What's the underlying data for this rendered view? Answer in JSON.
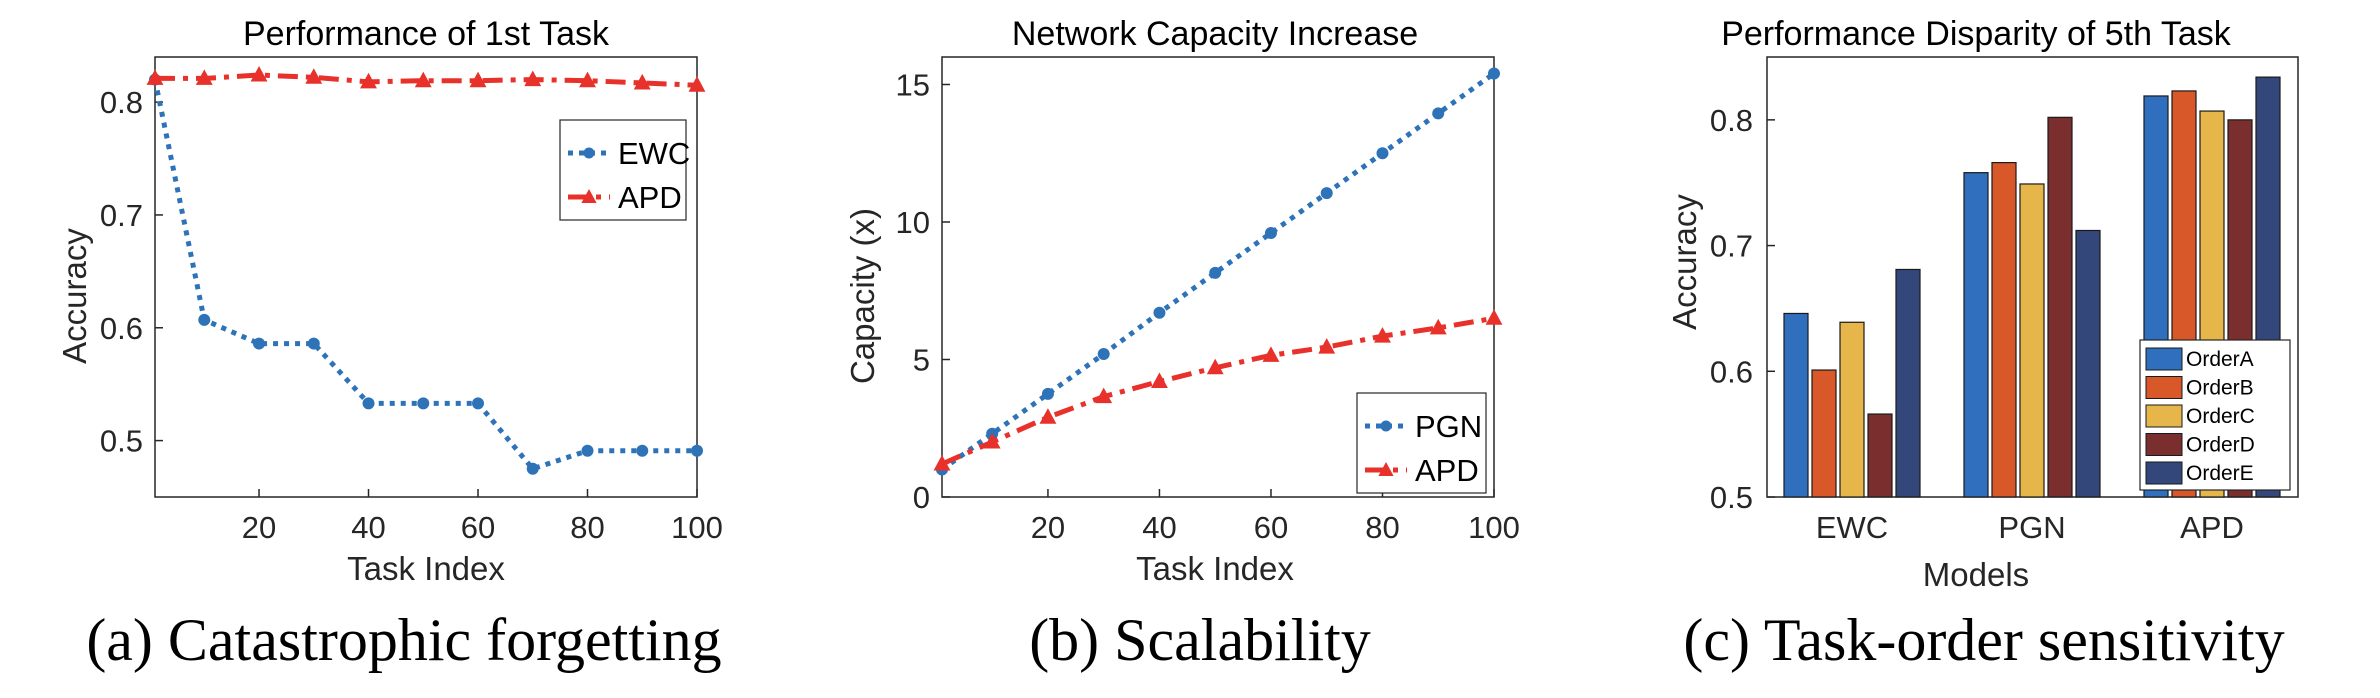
{
  "colors": {
    "ewc": "#2e73b8",
    "apd": "#e8312a",
    "pgn": "#2e73b8",
    "orderA": "#2f6fbd",
    "orderB": "#d9582a",
    "orderC": "#e6b64b",
    "orderD": "#7b2e2e",
    "orderE": "#34477a"
  },
  "captions": {
    "a": "(a) Catastrophic forgetting",
    "b": "(b) Scalability",
    "c": "(c) Task-order sensitivity"
  },
  "chart_data": [
    {
      "type": "line",
      "title": "Performance of 1st Task",
      "xlabel": "Task Index",
      "ylabel": "Accuracy",
      "xlim": [
        1,
        100
      ],
      "ylim": [
        0.45,
        0.84
      ],
      "xticks": [
        20,
        40,
        60,
        80,
        100
      ],
      "yticks": [
        0.5,
        0.6,
        0.7,
        0.8
      ],
      "legend_position": "top-right",
      "grid": false,
      "series": [
        {
          "name": "EWC",
          "style": "dotted-circle",
          "x": [
            1,
            10,
            20,
            30,
            40,
            50,
            60,
            70,
            80,
            90,
            100
          ],
          "y": [
            0.82,
            0.607,
            0.586,
            0.586,
            0.533,
            0.533,
            0.533,
            0.475,
            0.491,
            0.491,
            0.491
          ]
        },
        {
          "name": "APD",
          "style": "dashdot-triangle",
          "x": [
            1,
            10,
            20,
            30,
            40,
            50,
            60,
            70,
            80,
            90,
            100
          ],
          "y": [
            0.821,
            0.821,
            0.824,
            0.822,
            0.818,
            0.819,
            0.819,
            0.82,
            0.819,
            0.817,
            0.815
          ]
        }
      ]
    },
    {
      "type": "line",
      "title": "Network Capacity Increase",
      "xlabel": "Task Index",
      "ylabel": "Capacity (x)",
      "xlim": [
        1,
        100
      ],
      "ylim": [
        0,
        16
      ],
      "xticks": [
        20,
        40,
        60,
        80,
        100
      ],
      "yticks": [
        0,
        5,
        10,
        15
      ],
      "legend_position": "bottom-right",
      "grid": false,
      "series": [
        {
          "name": "PGN",
          "style": "dotted-circle",
          "x": [
            1,
            10,
            20,
            30,
            40,
            50,
            60,
            70,
            80,
            90,
            100
          ],
          "y": [
            1.0,
            2.3,
            3.75,
            5.2,
            6.7,
            8.15,
            9.6,
            11.05,
            12.5,
            13.95,
            15.4
          ]
        },
        {
          "name": "APD",
          "style": "dashdot-triangle",
          "x": [
            1,
            10,
            20,
            30,
            40,
            50,
            60,
            70,
            80,
            90,
            100
          ],
          "y": [
            1.2,
            2.0,
            2.9,
            3.65,
            4.2,
            4.7,
            5.15,
            5.45,
            5.85,
            6.15,
            6.5
          ]
        }
      ]
    },
    {
      "type": "bar",
      "title": "Performance Disparity of 5th Task",
      "xlabel": "Models",
      "ylabel": "Accuracy",
      "ylim": [
        0.5,
        0.85
      ],
      "yticks": [
        0.5,
        0.6,
        0.7,
        0.8
      ],
      "legend_position": "bottom-right",
      "grid": false,
      "categories": [
        "EWC",
        "PGN",
        "APD"
      ],
      "series": [
        {
          "name": "OrderA",
          "values": [
            0.646,
            0.758,
            0.819
          ]
        },
        {
          "name": "OrderB",
          "values": [
            0.601,
            0.766,
            0.823
          ]
        },
        {
          "name": "OrderC",
          "values": [
            0.639,
            0.749,
            0.807
          ]
        },
        {
          "name": "OrderD",
          "values": [
            0.566,
            0.802,
            0.8
          ]
        },
        {
          "name": "OrderE",
          "values": [
            0.681,
            0.712,
            0.834
          ]
        }
      ]
    }
  ]
}
